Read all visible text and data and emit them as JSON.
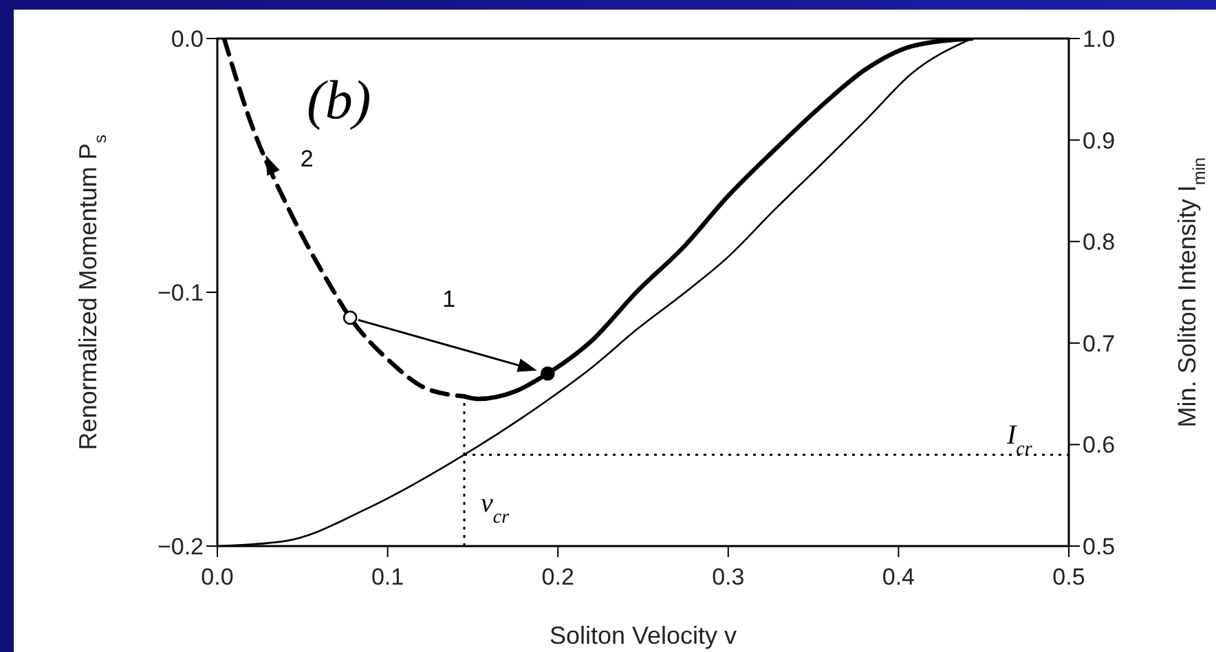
{
  "chart_data": {
    "type": "line",
    "xlabel": "Soliton Velocity v",
    "ylabel": "Renormalized Momentum P$_{s}$",
    "y2label": "Min. Soliton Intensity I$_{min}$",
    "annotations": [
      "(b)",
      "1",
      "2"
    ],
    "xlim": [
      0,
      0.5
    ],
    "xticks": [
      {
        "value": 0,
        "label": "0.0"
      },
      0.1,
      0.2,
      0.3,
      0.4,
      0.5
    ],
    "ylim": [
      -0.2,
      0
    ],
    "yticks": [
      {
        "value": -0.2,
        "label": "−0.2"
      },
      {
        "value": -0.1,
        "label": "−0.1"
      },
      {
        "value": 0,
        "label": "0.0"
      }
    ],
    "y2lim": [
      0.5,
      1.0
    ],
    "y2ticks": [
      0.5,
      0.6,
      0.7,
      0.8,
      0.9,
      {
        "value": 1.0,
        "label": "1.0"
      }
    ],
    "marker": "none",
    "ref_lines": [
      {
        "axis": "x",
        "value": 0.145,
        "label": "v$_{cr}$",
        "color": "#000000",
        "line_style": "dotted"
      },
      {
        "axis": "y2",
        "value": 0.59,
        "label": "I$_{cr}$",
        "color": "#000000",
        "line_style": "dotted"
      }
    ],
    "series": [
      {
        "color": "#000000",
        "line_style": "dashed",
        "x": [
          0.004,
          0.018,
          0.044,
          0.066,
          0.078,
          0.101,
          0.123,
          0.145
        ],
        "values": [
          0,
          -0.03,
          -0.07,
          -0.097,
          -0.11,
          -0.127,
          -0.138,
          -0.141
        ]
      },
      {
        "color": "#000000",
        "line_style": "solid",
        "x": [
          0.145,
          0.153,
          0.175,
          0.194,
          0.22,
          0.246,
          0.274,
          0.3,
          0.327,
          0.354,
          0.381,
          0.408,
          0.443
        ],
        "values": [
          -0.141,
          -0.142,
          -0.139,
          -0.132,
          -0.119,
          -0.1,
          -0.082,
          -0.062,
          -0.044,
          -0.027,
          -0.012,
          -0.003,
          0
        ]
      },
      {
        "color": "#000000",
        "line_style": "solid",
        "axis": "y2",
        "x": [
          0,
          0.04,
          0.088,
          0.145,
          0.195,
          0.22,
          0.246,
          0.274,
          0.3,
          0.327,
          0.354,
          0.381,
          0.408,
          0.443
        ],
        "values": [
          0.5,
          0.505,
          0.537,
          0.59,
          0.645,
          0.676,
          0.713,
          0.749,
          0.785,
          0.831,
          0.875,
          0.92,
          0.966,
          1.0
        ]
      },
      {
        "type": "scatter",
        "color": "#ffffff",
        "marker": "circle",
        "x": [
          0.078
        ],
        "values": [
          -0.11
        ]
      },
      {
        "type": "scatter",
        "color": "#000000",
        "marker": "circle",
        "x": [
          0.194
        ],
        "values": [
          -0.132
        ]
      }
    ]
  }
}
